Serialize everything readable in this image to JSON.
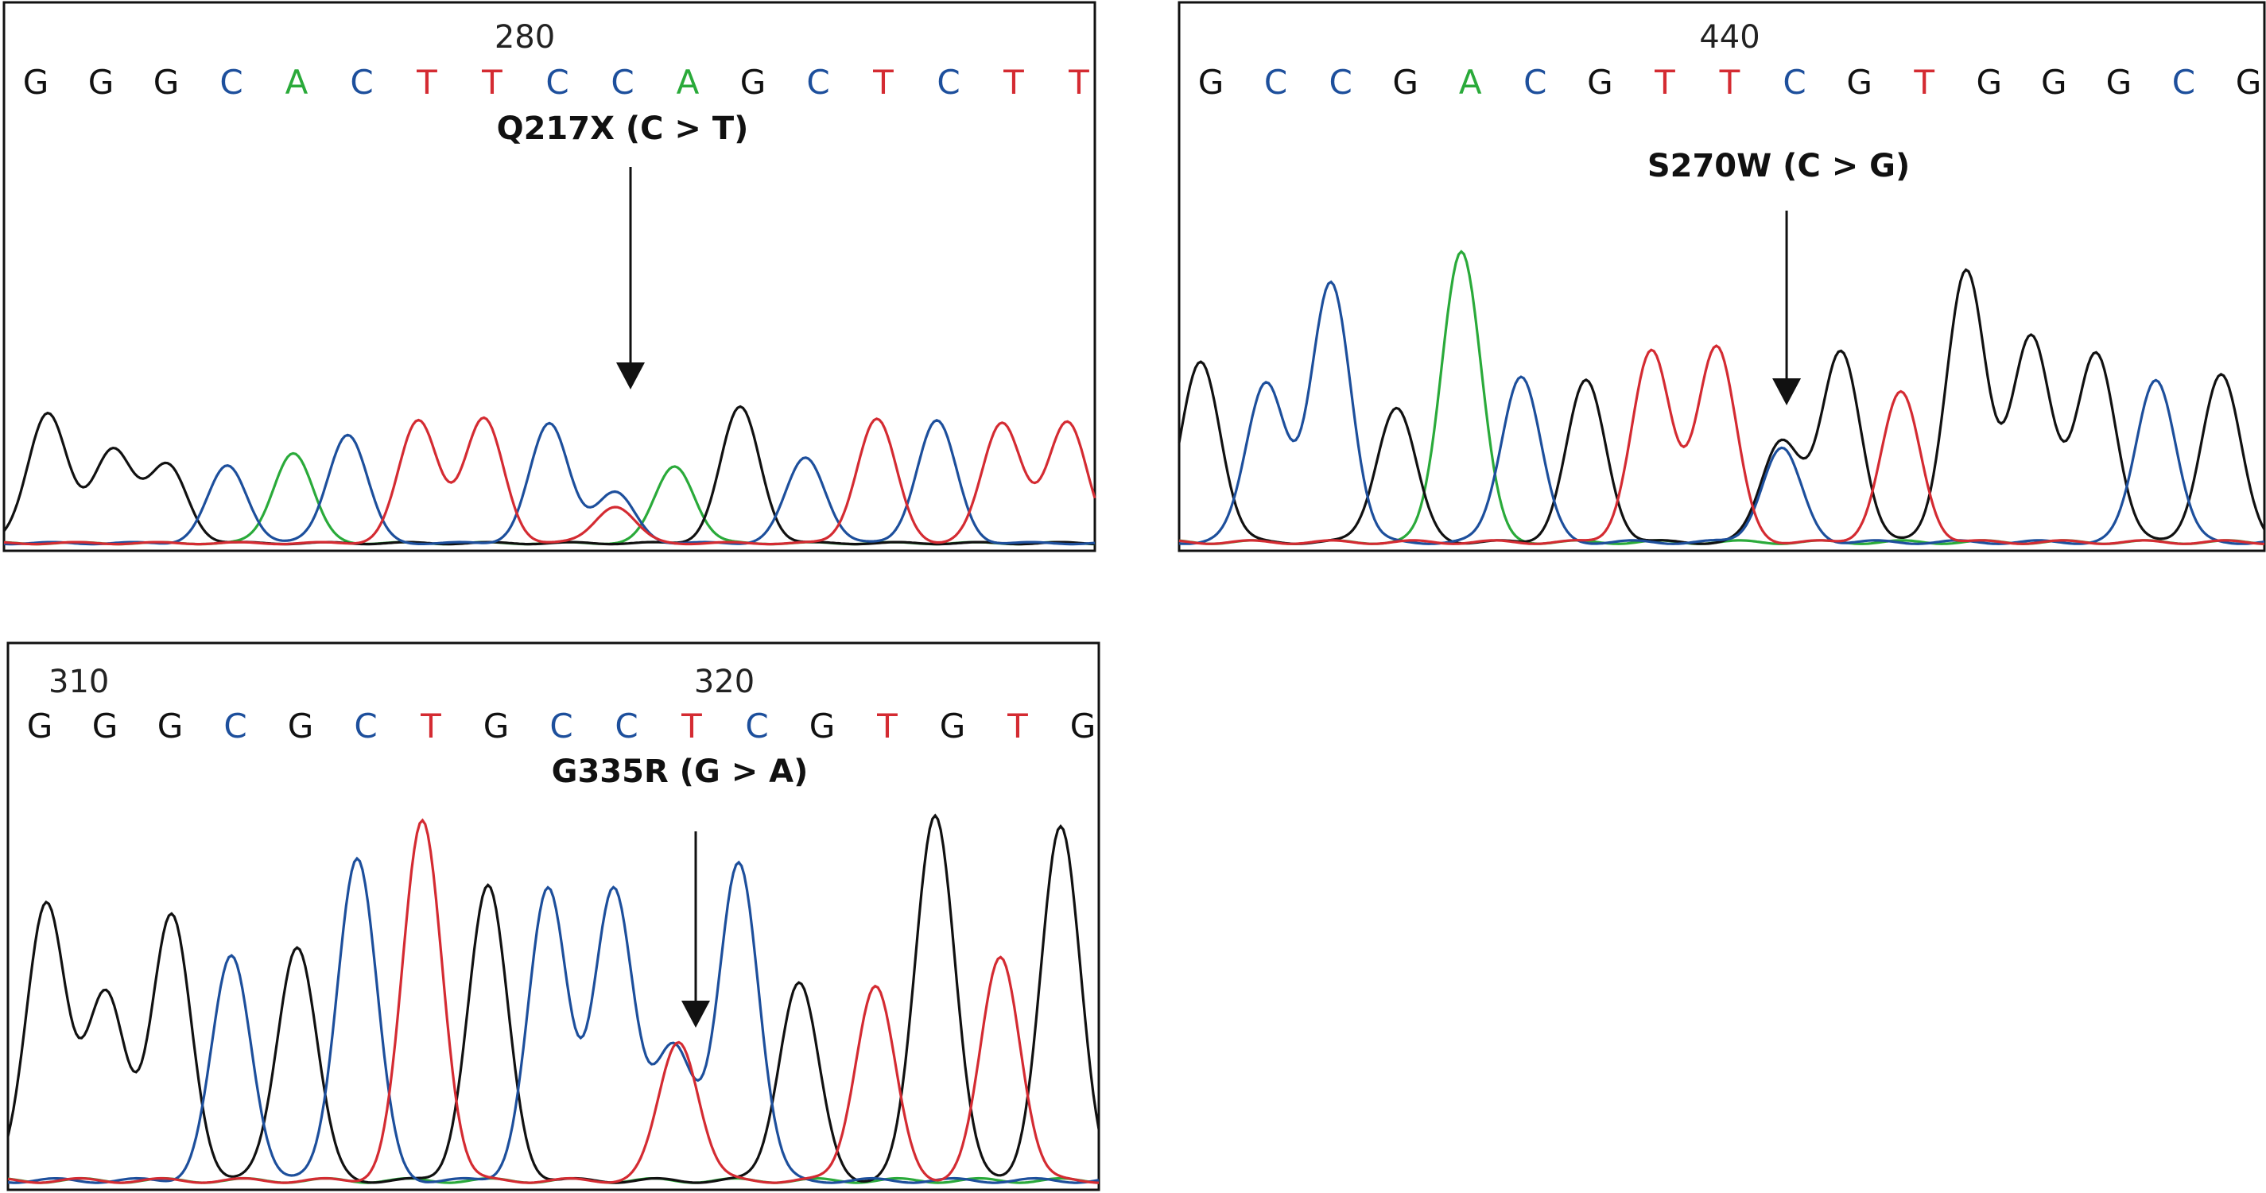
{
  "colors": {
    "A": "#2aaa3a",
    "C": "#1d4f9c",
    "G": "#111111",
    "T": "#d42b32"
  },
  "chart_data": [
    {
      "type": "line",
      "title": "",
      "position_labels": [
        {
          "text": "280",
          "base_index": 7.5
        }
      ],
      "sequence": [
        "G",
        "G",
        "G",
        "C",
        "A",
        "C",
        "T",
        "T",
        "C",
        "C",
        "A",
        "G",
        "C",
        "T",
        "C",
        "T",
        "T"
      ],
      "mutation": {
        "label": "Q217X (C > T)",
        "base_index": 9
      },
      "peaks": [
        {
          "base": "G",
          "x": 0.04,
          "h": 0.78
        },
        {
          "base": "G",
          "x": 0.1,
          "h": 0.56
        },
        {
          "base": "G",
          "x": 0.15,
          "h": 0.46
        },
        {
          "base": "C",
          "x": 0.205,
          "h": 0.46
        },
        {
          "base": "A",
          "x": 0.265,
          "h": 0.54
        },
        {
          "base": "C",
          "x": 0.315,
          "h": 0.65
        },
        {
          "base": "T",
          "x": 0.38,
          "h": 0.73
        },
        {
          "base": "T",
          "x": 0.44,
          "h": 0.74
        },
        {
          "base": "C",
          "x": 0.5,
          "h": 0.71
        },
        {
          "base": "C",
          "x": 0.56,
          "h": 0.3
        },
        {
          "base": "T",
          "x": 0.56,
          "h": 0.22
        },
        {
          "base": "A",
          "x": 0.615,
          "h": 0.46
        },
        {
          "base": "G",
          "x": 0.675,
          "h": 0.81
        },
        {
          "base": "C",
          "x": 0.735,
          "h": 0.51
        },
        {
          "base": "T",
          "x": 0.8,
          "h": 0.74
        },
        {
          "base": "C",
          "x": 0.855,
          "h": 0.73
        },
        {
          "base": "T",
          "x": 0.915,
          "h": 0.72
        },
        {
          "base": "T",
          "x": 0.975,
          "h": 0.72
        }
      ]
    },
    {
      "type": "line",
      "title": "",
      "position_labels": [
        {
          "text": "440",
          "base_index": 8.0
        }
      ],
      "sequence": [
        "G",
        "C",
        "C",
        "G",
        "A",
        "C",
        "G",
        "T",
        "T",
        "C",
        "G",
        "T",
        "G",
        "G",
        "G",
        "C",
        "G"
      ],
      "mutation": {
        "label": "S270W (C > G)",
        "base_index": 9
      },
      "peaks": [
        {
          "base": "G",
          "x": 0.02,
          "h": 0.62
        },
        {
          "base": "C",
          "x": 0.08,
          "h": 0.55
        },
        {
          "base": "C",
          "x": 0.14,
          "h": 0.89
        },
        {
          "base": "G",
          "x": 0.2,
          "h": 0.46
        },
        {
          "base": "A",
          "x": 0.26,
          "h": 1.0
        },
        {
          "base": "C",
          "x": 0.315,
          "h": 0.57
        },
        {
          "base": "G",
          "x": 0.375,
          "h": 0.55
        },
        {
          "base": "T",
          "x": 0.435,
          "h": 0.65
        },
        {
          "base": "T",
          "x": 0.495,
          "h": 0.67
        },
        {
          "base": "C",
          "x": 0.555,
          "h": 0.32
        },
        {
          "base": "G",
          "x": 0.555,
          "h": 0.35
        },
        {
          "base": "G",
          "x": 0.61,
          "h": 0.65
        },
        {
          "base": "T",
          "x": 0.665,
          "h": 0.51
        },
        {
          "base": "G",
          "x": 0.725,
          "h": 0.93
        },
        {
          "base": "G",
          "x": 0.785,
          "h": 0.71
        },
        {
          "base": "G",
          "x": 0.845,
          "h": 0.65
        },
        {
          "base": "C",
          "x": 0.9,
          "h": 0.56
        },
        {
          "base": "G",
          "x": 0.96,
          "h": 0.57
        }
      ]
    },
    {
      "type": "line",
      "title": "",
      "position_labels": [
        {
          "text": "310",
          "base_index": 0.6
        },
        {
          "text": "320",
          "base_index": 10.5
        }
      ],
      "sequence": [
        "G",
        "G",
        "G",
        "C",
        "G",
        "C",
        "T",
        "G",
        "C",
        "C",
        "T",
        "C",
        "G",
        "T",
        "G",
        "T",
        "G"
      ],
      "mutation": {
        "label": "G335R (G > A)",
        "base_index": 10
      },
      "peaks": [
        {
          "base": "G",
          "x": 0.035,
          "h": 0.76
        },
        {
          "base": "G",
          "x": 0.09,
          "h": 0.51
        },
        {
          "base": "G",
          "x": 0.15,
          "h": 0.72
        },
        {
          "base": "C",
          "x": 0.205,
          "h": 0.61
        },
        {
          "base": "G",
          "x": 0.265,
          "h": 0.64
        },
        {
          "base": "C",
          "x": 0.32,
          "h": 0.88
        },
        {
          "base": "T",
          "x": 0.38,
          "h": 0.98
        },
        {
          "base": "G",
          "x": 0.44,
          "h": 0.8
        },
        {
          "base": "C",
          "x": 0.495,
          "h": 0.79
        },
        {
          "base": "C",
          "x": 0.555,
          "h": 0.79
        },
        {
          "base": "C",
          "x": 0.61,
          "h": 0.37
        },
        {
          "base": "T",
          "x": 0.615,
          "h": 0.38
        },
        {
          "base": "C",
          "x": 0.67,
          "h": 0.87
        },
        {
          "base": "G",
          "x": 0.725,
          "h": 0.54
        },
        {
          "base": "T",
          "x": 0.795,
          "h": 0.53
        },
        {
          "base": "G",
          "x": 0.85,
          "h": 1.0
        },
        {
          "base": "T",
          "x": 0.91,
          "h": 0.61
        },
        {
          "base": "G",
          "x": 0.965,
          "h": 0.96
        }
      ]
    }
  ]
}
